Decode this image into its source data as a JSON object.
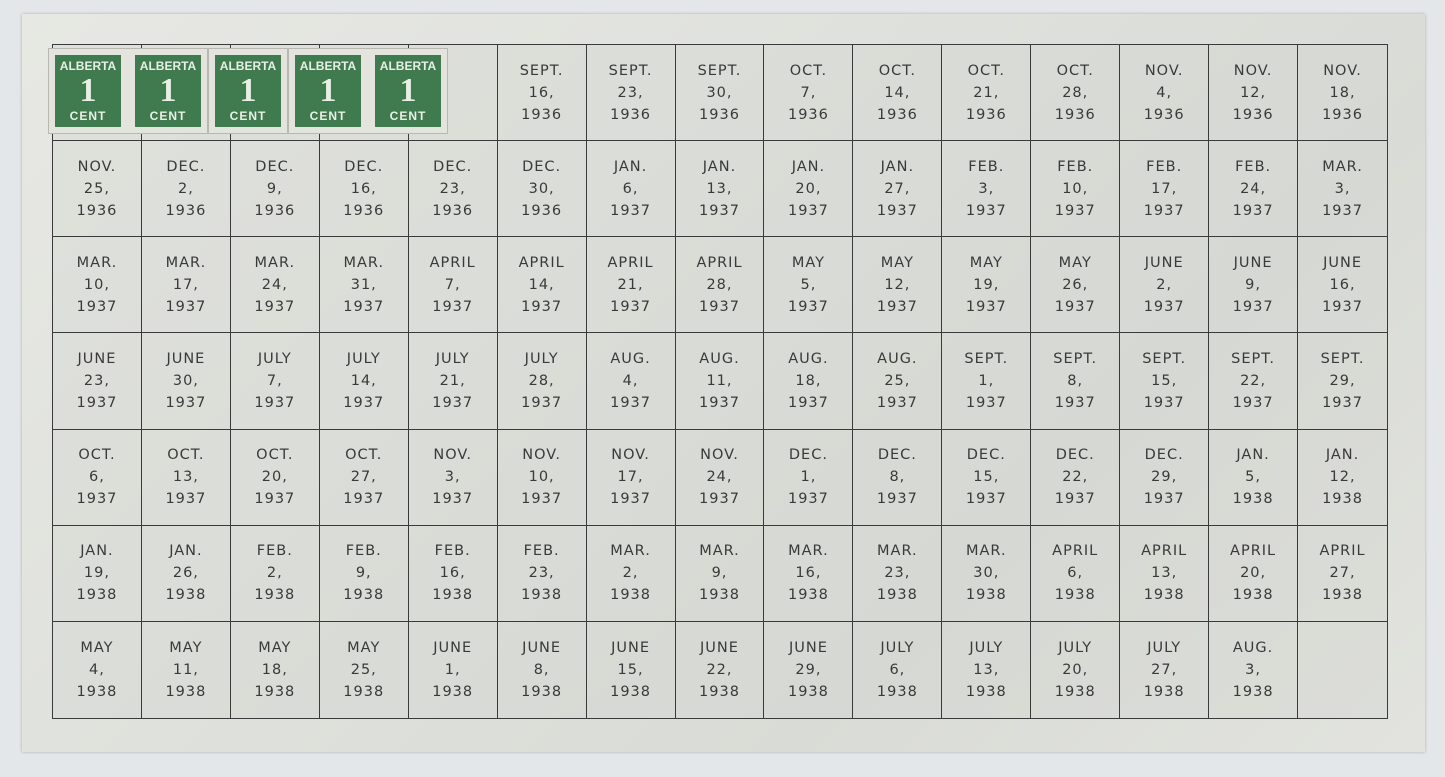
{
  "stamp": {
    "top": "ALBERTA",
    "value": "1",
    "bottom": "CENT",
    "color": "#3f7b4e",
    "count": 5
  },
  "rows": [
    [
      null,
      null,
      null,
      null,
      null,
      [
        "SEPT.",
        "16,",
        "1936"
      ],
      [
        "SEPT.",
        "23,",
        "1936"
      ],
      [
        "SEPT.",
        "30,",
        "1936"
      ],
      [
        "OCT.",
        "7,",
        "1936"
      ],
      [
        "OCT.",
        "14,",
        "1936"
      ],
      [
        "OCT.",
        "21,",
        "1936"
      ],
      [
        "OCT.",
        "28,",
        "1936"
      ],
      [
        "NOV.",
        "4,",
        "1936"
      ],
      [
        "NOV.",
        "12,",
        "1936"
      ],
      [
        "NOV.",
        "18,",
        "1936"
      ]
    ],
    [
      [
        "NOV.",
        "25,",
        "1936"
      ],
      [
        "DEC.",
        "2,",
        "1936"
      ],
      [
        "DEC.",
        "9,",
        "1936"
      ],
      [
        "DEC.",
        "16,",
        "1936"
      ],
      [
        "DEC.",
        "23,",
        "1936"
      ],
      [
        "DEC.",
        "30,",
        "1936"
      ],
      [
        "JAN.",
        "6,",
        "1937"
      ],
      [
        "JAN.",
        "13,",
        "1937"
      ],
      [
        "JAN.",
        "20,",
        "1937"
      ],
      [
        "JAN.",
        "27,",
        "1937"
      ],
      [
        "FEB.",
        "3,",
        "1937"
      ],
      [
        "FEB.",
        "10,",
        "1937"
      ],
      [
        "FEB.",
        "17,",
        "1937"
      ],
      [
        "FEB.",
        "24,",
        "1937"
      ],
      [
        "MAR.",
        "3,",
        "1937"
      ]
    ],
    [
      [
        "MAR.",
        "10,",
        "1937"
      ],
      [
        "MAR.",
        "17,",
        "1937"
      ],
      [
        "MAR.",
        "24,",
        "1937"
      ],
      [
        "MAR.",
        "31,",
        "1937"
      ],
      [
        "APRIL",
        "7,",
        "1937"
      ],
      [
        "APRIL",
        "14,",
        "1937"
      ],
      [
        "APRIL",
        "21,",
        "1937"
      ],
      [
        "APRIL",
        "28,",
        "1937"
      ],
      [
        "MAY",
        "5,",
        "1937"
      ],
      [
        "MAY",
        "12,",
        "1937"
      ],
      [
        "MAY",
        "19,",
        "1937"
      ],
      [
        "MAY",
        "26,",
        "1937"
      ],
      [
        "JUNE",
        "2,",
        "1937"
      ],
      [
        "JUNE",
        "9,",
        "1937"
      ],
      [
        "JUNE",
        "16,",
        "1937"
      ]
    ],
    [
      [
        "JUNE",
        "23,",
        "1937"
      ],
      [
        "JUNE",
        "30,",
        "1937"
      ],
      [
        "JULY",
        "7,",
        "1937"
      ],
      [
        "JULY",
        "14,",
        "1937"
      ],
      [
        "JULY",
        "21,",
        "1937"
      ],
      [
        "JULY",
        "28,",
        "1937"
      ],
      [
        "AUG.",
        "4,",
        "1937"
      ],
      [
        "AUG.",
        "11,",
        "1937"
      ],
      [
        "AUG.",
        "18,",
        "1937"
      ],
      [
        "AUG.",
        "25,",
        "1937"
      ],
      [
        "SEPT.",
        "1,",
        "1937"
      ],
      [
        "SEPT.",
        "8,",
        "1937"
      ],
      [
        "SEPT.",
        "15,",
        "1937"
      ],
      [
        "SEPT.",
        "22,",
        "1937"
      ],
      [
        "SEPT.",
        "29,",
        "1937"
      ]
    ],
    [
      [
        "OCT.",
        "6,",
        "1937"
      ],
      [
        "OCT.",
        "13,",
        "1937"
      ],
      [
        "OCT.",
        "20,",
        "1937"
      ],
      [
        "OCT.",
        "27,",
        "1937"
      ],
      [
        "NOV.",
        "3,",
        "1937"
      ],
      [
        "NOV.",
        "10,",
        "1937"
      ],
      [
        "NOV.",
        "17,",
        "1937"
      ],
      [
        "NOV.",
        "24,",
        "1937"
      ],
      [
        "DEC.",
        "1,",
        "1937"
      ],
      [
        "DEC.",
        "8,",
        "1937"
      ],
      [
        "DEC.",
        "15,",
        "1937"
      ],
      [
        "DEC.",
        "22,",
        "1937"
      ],
      [
        "DEC.",
        "29,",
        "1937"
      ],
      [
        "JAN.",
        "5,",
        "1938"
      ],
      [
        "JAN.",
        "12,",
        "1938"
      ]
    ],
    [
      [
        "JAN.",
        "19,",
        "1938"
      ],
      [
        "JAN.",
        "26,",
        "1938"
      ],
      [
        "FEB.",
        "2,",
        "1938"
      ],
      [
        "FEB.",
        "9,",
        "1938"
      ],
      [
        "FEB.",
        "16,",
        "1938"
      ],
      [
        "FEB.",
        "23,",
        "1938"
      ],
      [
        "MAR.",
        "2,",
        "1938"
      ],
      [
        "MAR.",
        "9,",
        "1938"
      ],
      [
        "MAR.",
        "16,",
        "1938"
      ],
      [
        "MAR.",
        "23,",
        "1938"
      ],
      [
        "MAR.",
        "30,",
        "1938"
      ],
      [
        "APRIL",
        "6,",
        "1938"
      ],
      [
        "APRIL",
        "13,",
        "1938"
      ],
      [
        "APRIL",
        "20,",
        "1938"
      ],
      [
        "APRIL",
        "27,",
        "1938"
      ]
    ],
    [
      [
        "MAY",
        "4,",
        "1938"
      ],
      [
        "MAY",
        "11,",
        "1938"
      ],
      [
        "MAY",
        "18,",
        "1938"
      ],
      [
        "MAY",
        "25,",
        "1938"
      ],
      [
        "JUNE",
        "1,",
        "1938"
      ],
      [
        "JUNE",
        "8,",
        "1938"
      ],
      [
        "JUNE",
        "15,",
        "1938"
      ],
      [
        "JUNE",
        "22,",
        "1938"
      ],
      [
        "JUNE",
        "29,",
        "1938"
      ],
      [
        "JULY",
        "6,",
        "1938"
      ],
      [
        "JULY",
        "13,",
        "1938"
      ],
      [
        "JULY",
        "20,",
        "1938"
      ],
      [
        "JULY",
        "27,",
        "1938"
      ],
      [
        "AUG.",
        "3,",
        "1938"
      ],
      null
    ]
  ]
}
